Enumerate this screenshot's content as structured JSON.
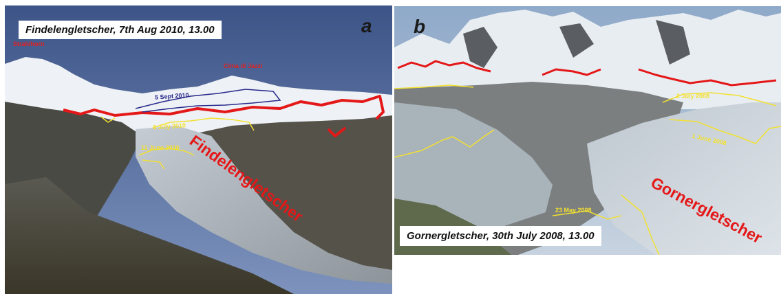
{
  "panel_a": {
    "caption": "Findelengletscher, 7th Aug 2010, 13.00",
    "letter": "a",
    "glacier_label": "Findelengletscher",
    "peak_label_left": "Strahlhorn",
    "peak_label_right": "Cima di Jazzi",
    "line_labels": {
      "sept": "5 Sept 2010",
      "july": "6 July 2010",
      "june": "11 June 2010"
    }
  },
  "panel_b": {
    "caption": "Gornergletscher, 30th July 2008, 13.00",
    "letter": "b",
    "glacier_label": "Gornergletscher",
    "line_labels": {
      "july": "2 July 2008",
      "june": "1 June 2008",
      "may": "23 May 2008"
    }
  },
  "colors": {
    "snowline_red": "#e41818",
    "snowline_yellow": "#f2e030",
    "snowline_blue": "#28288a"
  }
}
